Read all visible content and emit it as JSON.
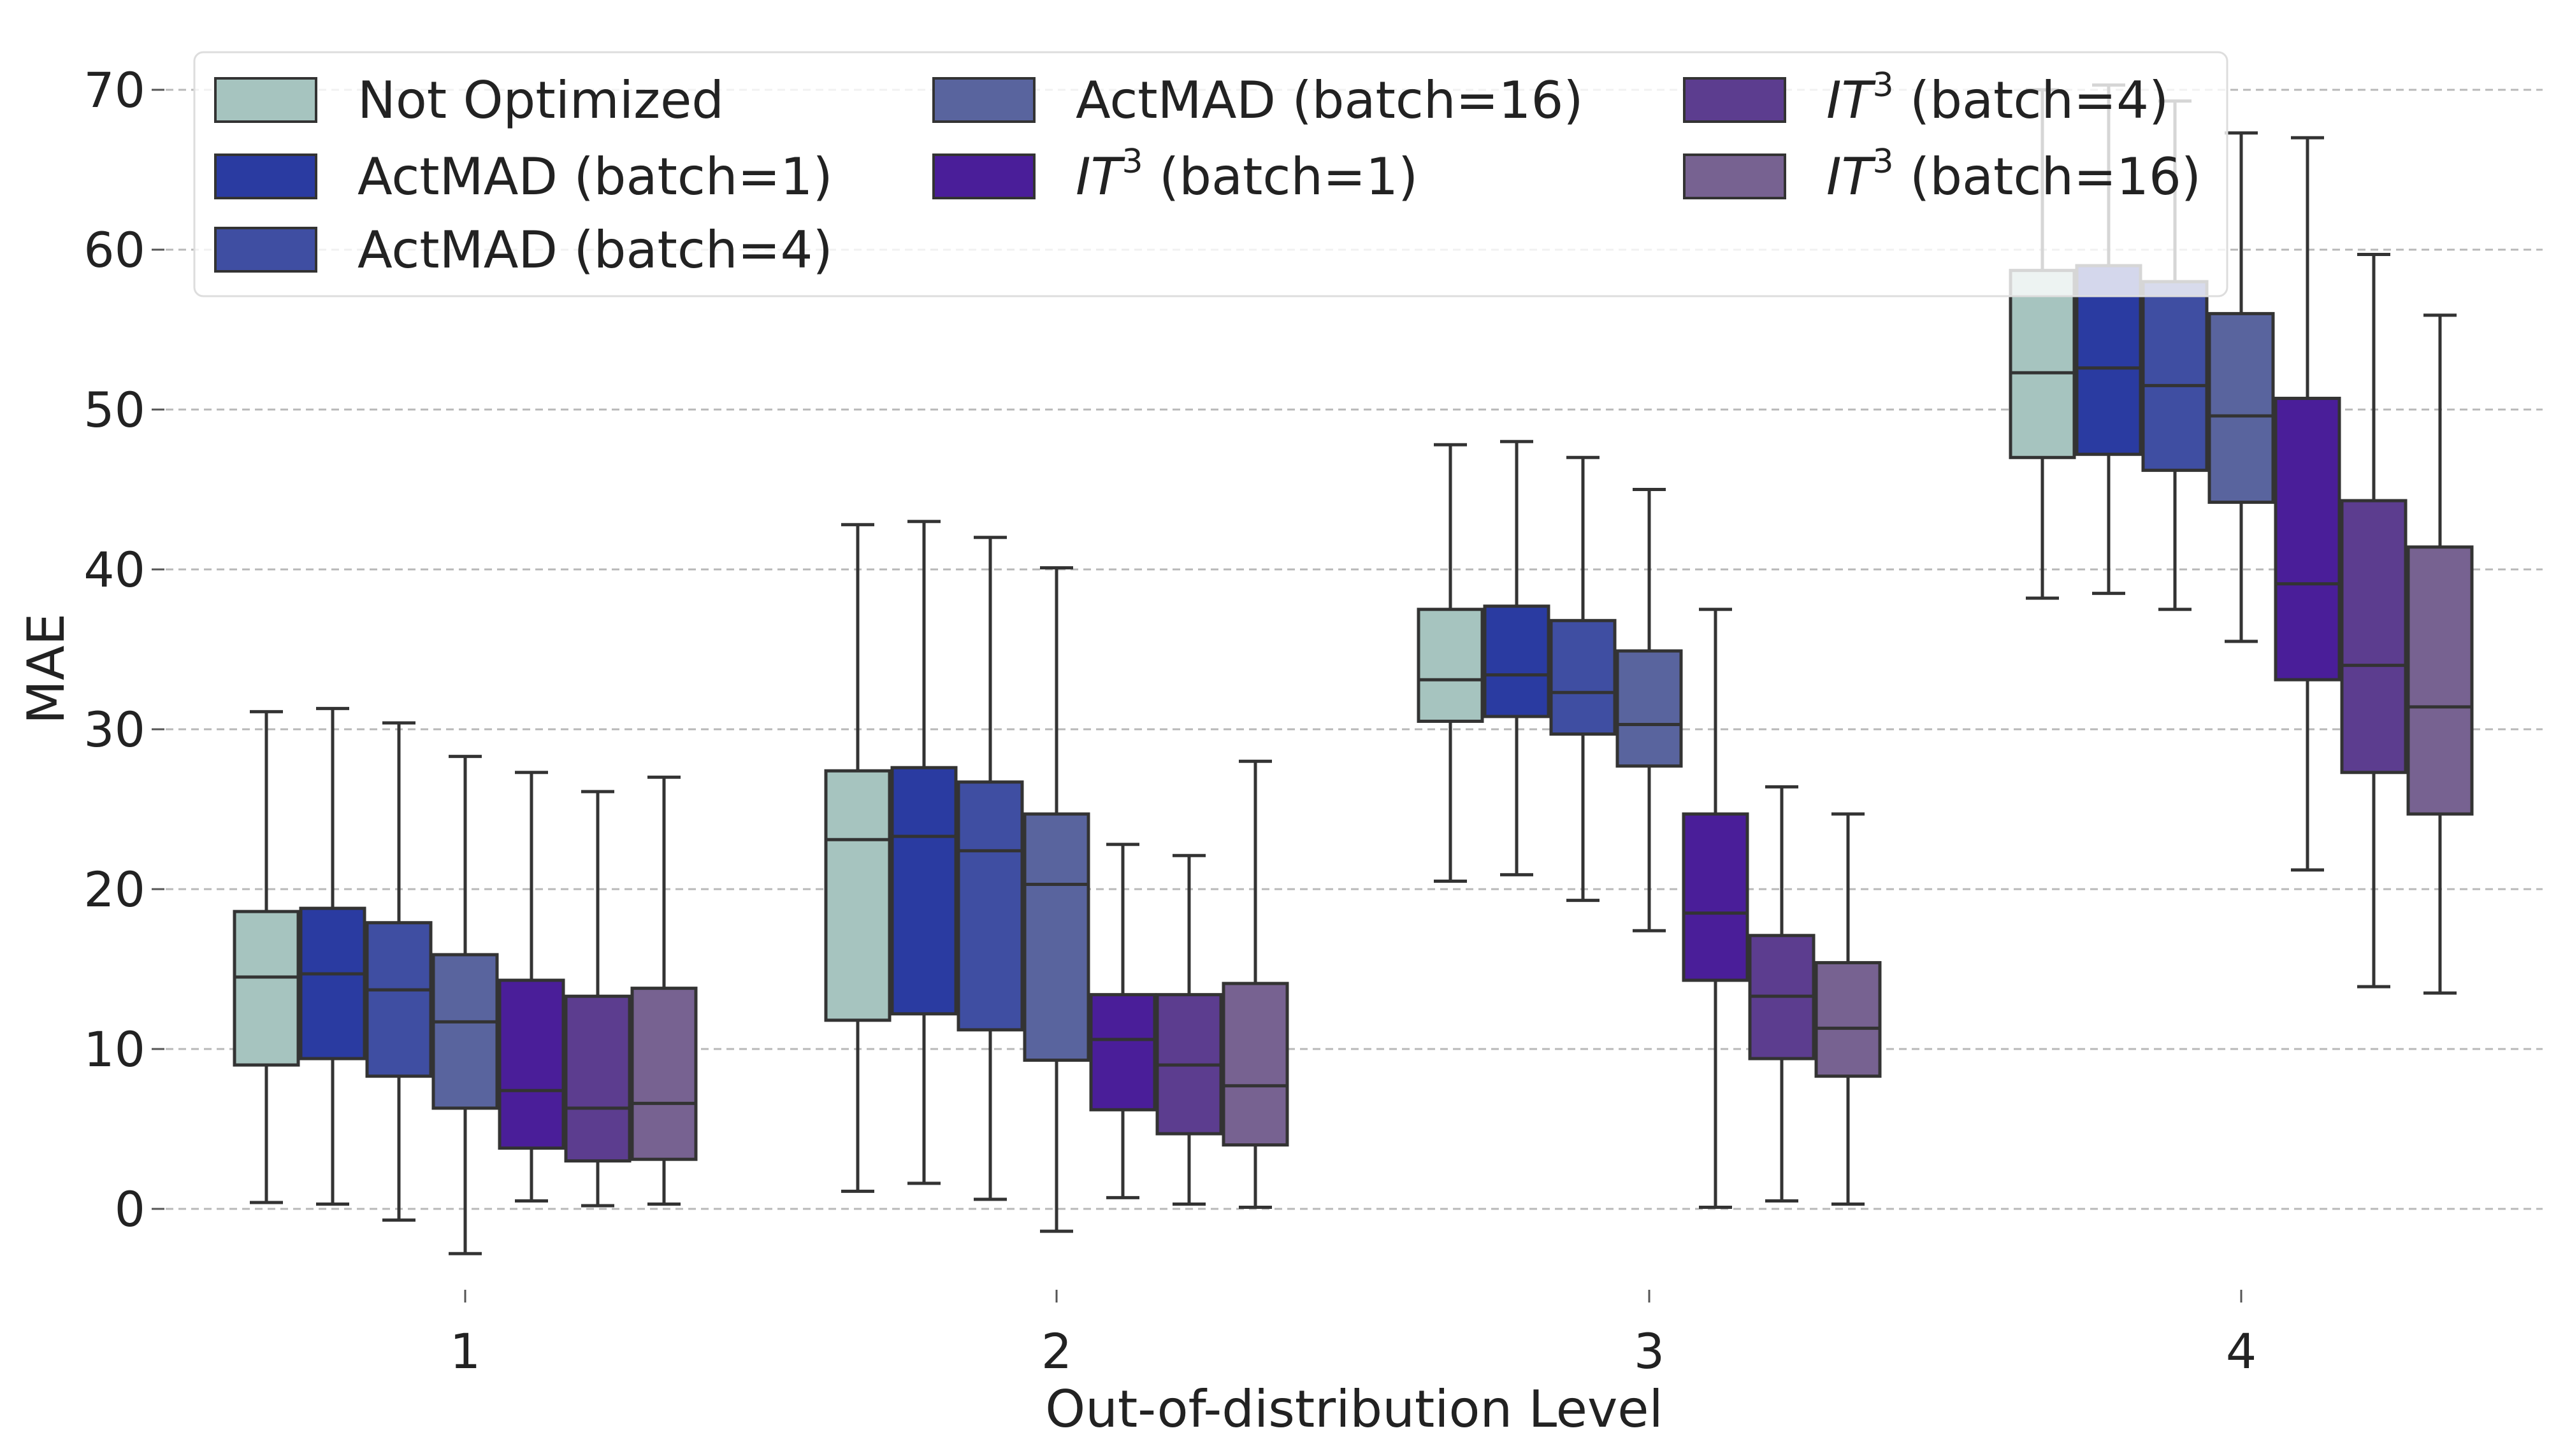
{
  "chart_data": {
    "type": "boxplot",
    "title": "",
    "xlabel": "Out-of-distribution Level",
    "ylabel": "MAE",
    "ylim": [
      -5,
      72
    ],
    "yticks": [
      0,
      10,
      20,
      30,
      40,
      50,
      60,
      70
    ],
    "grid": true,
    "legend_position": "top-left",
    "categories": [
      "1",
      "2",
      "3",
      "4"
    ],
    "series": [
      {
        "name": "Not Optimized",
        "prefix": "",
        "sup": "",
        "suffix": "Not Optimized",
        "color": "#a6c4bf",
        "boxes": [
          {
            "whislo": 0.4,
            "q1": 9.0,
            "med": 14.5,
            "q3": 18.6,
            "whishi": 31.1
          },
          {
            "whislo": 1.1,
            "q1": 11.8,
            "med": 23.1,
            "q3": 27.4,
            "whishi": 42.8
          },
          {
            "whislo": 20.5,
            "q1": 30.5,
            "med": 33.1,
            "q3": 37.5,
            "whishi": 47.8
          },
          {
            "whislo": 38.2,
            "q1": 47.0,
            "med": 52.3,
            "q3": 58.7,
            "whishi": 70.0
          }
        ]
      },
      {
        "name": "ActMAD (batch=1)",
        "prefix": "",
        "sup": "",
        "suffix": "ActMAD (batch=1)",
        "color": "#2a3ba1",
        "boxes": [
          {
            "whislo": 0.3,
            "q1": 9.4,
            "med": 14.7,
            "q3": 18.8,
            "whishi": 31.3
          },
          {
            "whislo": 1.6,
            "q1": 12.2,
            "med": 23.3,
            "q3": 27.6,
            "whishi": 43.0
          },
          {
            "whislo": 20.9,
            "q1": 30.8,
            "med": 33.4,
            "q3": 37.7,
            "whishi": 48.0
          },
          {
            "whislo": 38.5,
            "q1": 47.2,
            "med": 52.6,
            "q3": 59.0,
            "whishi": 70.3
          }
        ]
      },
      {
        "name": "ActMAD (batch=4)",
        "prefix": "",
        "sup": "",
        "suffix": "ActMAD (batch=4)",
        "color": "#3f4ea2",
        "boxes": [
          {
            "whislo": -0.7,
            "q1": 8.3,
            "med": 13.7,
            "q3": 17.9,
            "whishi": 30.4
          },
          {
            "whislo": 0.6,
            "q1": 11.2,
            "med": 22.4,
            "q3": 26.7,
            "whishi": 42.0
          },
          {
            "whislo": 19.3,
            "q1": 29.7,
            "med": 32.3,
            "q3": 36.8,
            "whishi": 47.0
          },
          {
            "whislo": 37.5,
            "q1": 46.2,
            "med": 51.5,
            "q3": 58.0,
            "whishi": 69.3
          }
        ]
      },
      {
        "name": "ActMAD (batch=16)",
        "prefix": "",
        "sup": "",
        "suffix": "ActMAD (batch=16)",
        "color": "#59649e",
        "boxes": [
          {
            "whislo": -2.8,
            "q1": 6.3,
            "med": 11.7,
            "q3": 15.9,
            "whishi": 28.3
          },
          {
            "whislo": -1.4,
            "q1": 9.3,
            "med": 20.3,
            "q3": 24.7,
            "whishi": 40.1
          },
          {
            "whislo": 17.4,
            "q1": 27.7,
            "med": 30.3,
            "q3": 34.9,
            "whishi": 45.0
          },
          {
            "whislo": 35.5,
            "q1": 44.2,
            "med": 49.6,
            "q3": 56.0,
            "whishi": 67.3
          }
        ]
      },
      {
        "name": "IT3 (batch=1)",
        "prefix": "IT",
        "sup": "3",
        "suffix": " (batch=1)",
        "color": "#4a1e99",
        "boxes": [
          {
            "whislo": 0.5,
            "q1": 3.8,
            "med": 7.4,
            "q3": 14.3,
            "whishi": 27.3
          },
          {
            "whislo": 0.7,
            "q1": 6.2,
            "med": 10.6,
            "q3": 13.4,
            "whishi": 22.8
          },
          {
            "whislo": 0.1,
            "q1": 14.3,
            "med": 18.5,
            "q3": 24.7,
            "whishi": 37.5
          },
          {
            "whislo": 21.2,
            "q1": 33.1,
            "med": 39.1,
            "q3": 50.7,
            "whishi": 67.0
          }
        ]
      },
      {
        "name": "IT3 (batch=4)",
        "prefix": "IT",
        "sup": "3",
        "suffix": " (batch=4)",
        "color": "#5c3d8f",
        "boxes": [
          {
            "whislo": 0.2,
            "q1": 3.0,
            "med": 6.3,
            "q3": 13.3,
            "whishi": 26.1
          },
          {
            "whislo": 0.3,
            "q1": 4.7,
            "med": 9.0,
            "q3": 13.4,
            "whishi": 22.1
          },
          {
            "whislo": 0.5,
            "q1": 9.4,
            "med": 13.3,
            "q3": 17.1,
            "whishi": 26.4
          },
          {
            "whislo": 13.9,
            "q1": 27.3,
            "med": 34.0,
            "q3": 44.3,
            "whishi": 59.7
          }
        ]
      },
      {
        "name": "IT3 (batch=16)",
        "prefix": "IT",
        "sup": "3",
        "suffix": " (batch=16)",
        "color": "#776291",
        "boxes": [
          {
            "whislo": 0.3,
            "q1": 3.1,
            "med": 6.6,
            "q3": 13.8,
            "whishi": 27.0
          },
          {
            "whislo": 0.1,
            "q1": 4.0,
            "med": 7.7,
            "q3": 14.1,
            "whishi": 28.0
          },
          {
            "whislo": 0.3,
            "q1": 8.3,
            "med": 11.3,
            "q3": 15.4,
            "whishi": 24.7
          },
          {
            "whislo": 13.5,
            "q1": 24.7,
            "med": 31.4,
            "q3": 41.4,
            "whishi": 55.9
          }
        ]
      }
    ]
  }
}
